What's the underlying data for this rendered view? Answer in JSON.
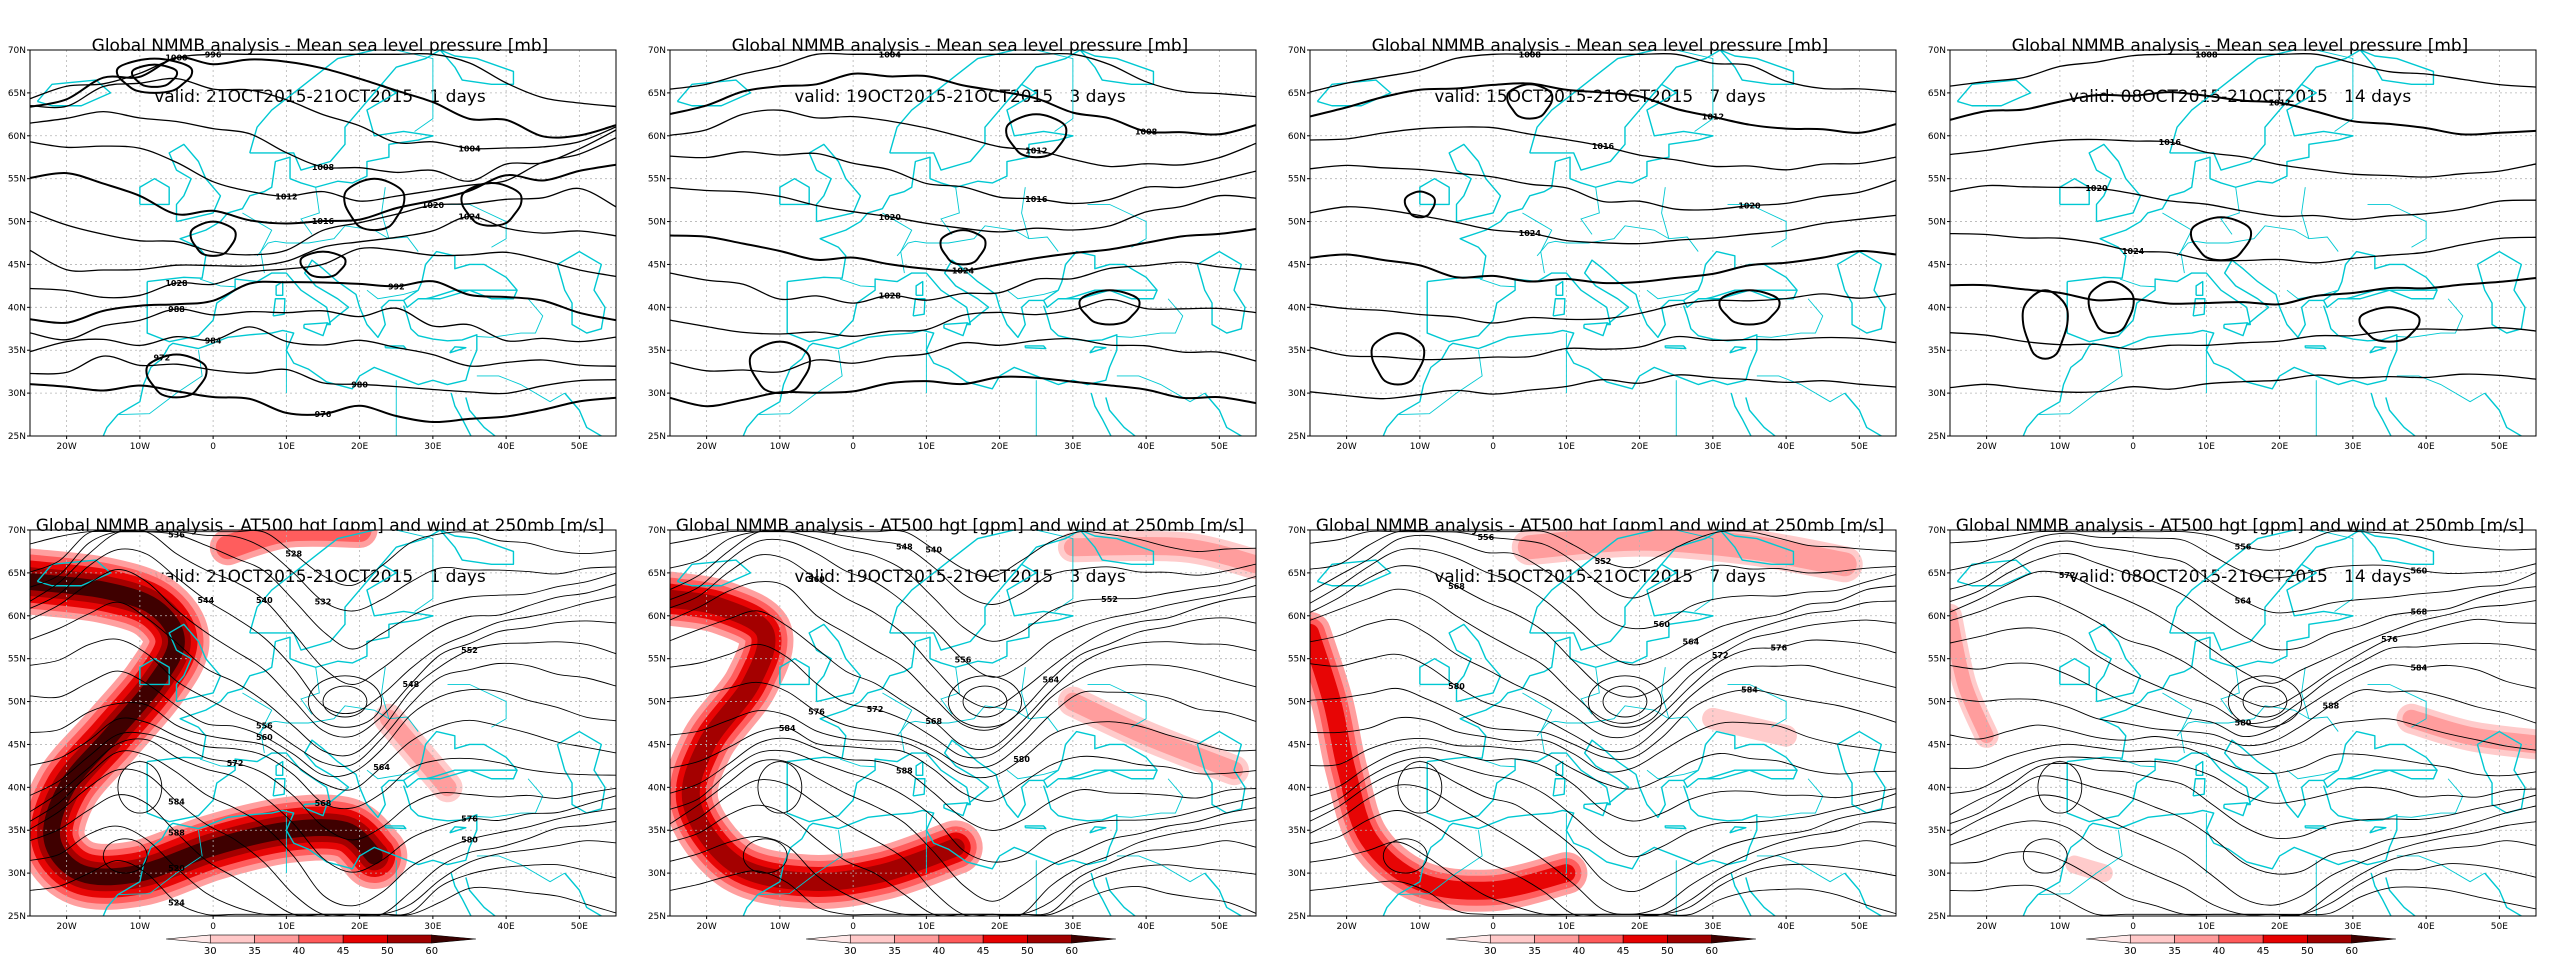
{
  "panels": [
    {
      "id": "mslp-1",
      "title": "Global NMMB analysis - Mean sea level pressure [mb]",
      "valid": "valid: 21OCT2015-21OCT2015   1 days",
      "field": "mslp",
      "labels": [
        "996",
        "1000",
        "1004",
        "1008",
        "1012",
        "1016",
        "1020",
        "1024",
        "1028",
        "992",
        "988",
        "984",
        "980",
        "976",
        "972"
      ]
    },
    {
      "id": "mslp-3",
      "title": "Global NMMB analysis - Mean sea level pressure [mb]",
      "valid": "valid: 19OCT2015-21OCT2015   3 days",
      "field": "mslp",
      "labels": [
        "1004",
        "1008",
        "1012",
        "1016",
        "1020",
        "1024",
        "1028"
      ]
    },
    {
      "id": "mslp-7",
      "title": "Global NMMB analysis - Mean sea level pressure [mb]",
      "valid": "valid: 15OCT2015-21OCT2015   7 days",
      "field": "mslp",
      "labels": [
        "1008",
        "1012",
        "1016",
        "1020",
        "1024"
      ]
    },
    {
      "id": "mslp-14",
      "title": "Global NMMB analysis - Mean sea level pressure [mb]",
      "valid": "valid: 08OCT2015-21OCT2015   14 days",
      "field": "mslp",
      "labels": [
        "1008",
        "1012",
        "1016",
        "1020",
        "1024"
      ]
    },
    {
      "id": "z500-1",
      "title": "Global NMMB analysis - AT500 hgt [gpm] and wind at 250mb [m/s]",
      "valid": "valid: 21OCT2015-21OCT2015   1 days",
      "field": "z500",
      "labels": [
        "528",
        "532",
        "536",
        "540",
        "544",
        "548",
        "552",
        "556",
        "560",
        "564",
        "568",
        "572",
        "576",
        "580",
        "584",
        "588",
        "520",
        "524"
      ]
    },
    {
      "id": "z500-3",
      "title": "Global NMMB analysis - AT500 hgt [gpm] and wind at 250mb [m/s]",
      "valid": "valid: 19OCT2015-21OCT2015   3 days",
      "field": "z500",
      "labels": [
        "540",
        "548",
        "552",
        "556",
        "560",
        "564",
        "568",
        "572",
        "576",
        "580",
        "584",
        "588"
      ]
    },
    {
      "id": "z500-7",
      "title": "Global NMMB analysis - AT500 hgt [gpm] and wind at 250mb [m/s]",
      "valid": "valid: 15OCT2015-21OCT2015   7 days",
      "field": "z500",
      "labels": [
        "552",
        "556",
        "560",
        "564",
        "568",
        "572",
        "576",
        "580",
        "584"
      ]
    },
    {
      "id": "z500-14",
      "title": "Global NMMB analysis - AT500 hgt [gpm] and wind at 250mb [m/s]",
      "valid": "valid: 08OCT2015-21OCT2015   14 days",
      "field": "z500",
      "labels": [
        "556",
        "560",
        "564",
        "568",
        "572",
        "576",
        "580",
        "584",
        "588"
      ]
    }
  ],
  "axes": {
    "lat_labels": [
      "70N",
      "65N",
      "60N",
      "55N",
      "50N",
      "45N",
      "40N",
      "35N",
      "30N",
      "25N"
    ],
    "lon_labels": [
      "20W",
      "10W",
      "0",
      "10E",
      "20E",
      "30E",
      "40E",
      "50E"
    ]
  },
  "colorbar": {
    "labels": [
      "30",
      "35",
      "40",
      "45",
      "50",
      "60"
    ],
    "colors": [
      "#ffe8e8",
      "#ffc8c8",
      "#ff9a9a",
      "#ff5a5a",
      "#e60000",
      "#a00000",
      "#3a0000"
    ]
  },
  "colors": {
    "coastline": "#00c8d2",
    "contour": "#000000",
    "grid": "#b4b4b4"
  }
}
